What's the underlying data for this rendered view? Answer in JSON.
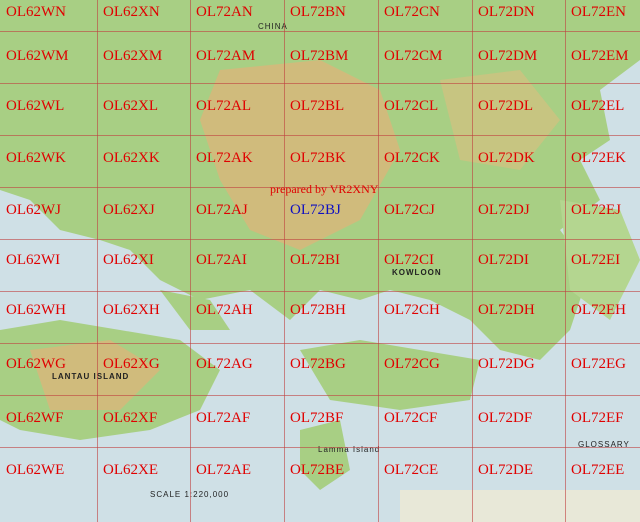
{
  "credit": "prepared by VR2XNY",
  "highlight_cell": "OL72BJ",
  "colors": {
    "label": "#e00000",
    "highlight": "#1010c0",
    "sea": "#cfe0e6",
    "land": "#9cc77a",
    "hills": "#d8b070"
  },
  "columns": [
    "OL62W",
    "OL62X",
    "OL72A",
    "OL72B",
    "OL72C",
    "OL72D",
    "OL72E"
  ],
  "rows": [
    "N",
    "M",
    "L",
    "K",
    "J",
    "I",
    "H",
    "G",
    "F",
    "E"
  ],
  "place_labels": {
    "china": "CHINA",
    "kowloon": "KOWLOON",
    "lantau": "LANTAU ISLAND",
    "lamma": "Lamma Island",
    "glossary": "GLOSSARY",
    "scale": "SCALE 1:220,000"
  }
}
